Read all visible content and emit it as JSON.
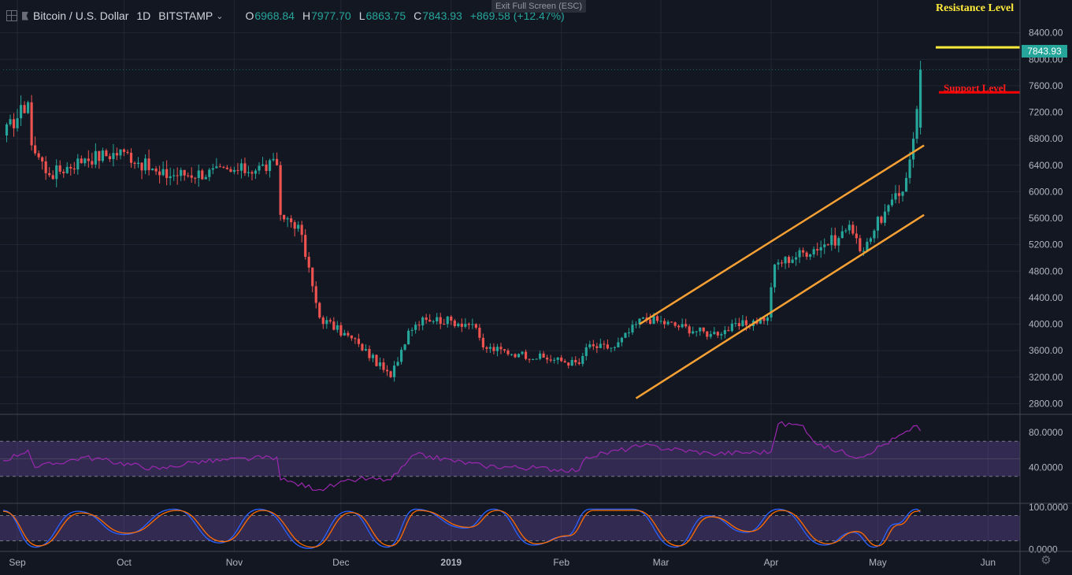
{
  "header": {
    "symbol": "Bitcoin / U.S. Dollar",
    "interval": "1D",
    "exchange": "BITSTAMP",
    "chevron": "⌄",
    "open_label": "O",
    "open": "6968.84",
    "high_label": "H",
    "high": "7977.70",
    "low_label": "L",
    "low": "6863.75",
    "close_label": "C",
    "close": "7843.93",
    "change": "+869.58 (+12.47%)"
  },
  "exit_fullscreen": "Exit Full Screen (ESC)",
  "annotations": {
    "resistance": "Resistance Level",
    "support": "Support Level"
  },
  "last_price": "7843.93",
  "colors": {
    "background": "#131722",
    "up": "#26a69a",
    "down": "#ef5350",
    "channel": "#f7a033",
    "resistance": "#ffeb3b",
    "support": "#ff0000",
    "rsi": "#9c27b0",
    "stoch_k": "#2962ff",
    "stoch_d": "#ff6d00"
  },
  "chart_data": [
    {
      "type": "candlestick",
      "title": "",
      "x_ticks": [
        "Sep",
        "Oct",
        "Nov",
        "Dec",
        "2019",
        "Feb",
        "Mar",
        "Apr",
        "May",
        "Jun"
      ],
      "y_ticks": [
        "8400.00",
        "8000.00",
        "7600.00",
        "7200.00",
        "6800.00",
        "6400.00",
        "6000.00",
        "5600.00",
        "5200.00",
        "4800.00",
        "4400.00",
        "4000.00",
        "3600.00",
        "3200.00",
        "2800.00"
      ],
      "ylim": [
        2650,
        8800
      ],
      "close_path": [
        [
          "2018-08-28",
          6850
        ],
        [
          "2018-09-04",
          7350
        ],
        [
          "2018-09-05",
          6700
        ],
        [
          "2018-09-10",
          6250
        ],
        [
          "2018-09-20",
          6500
        ],
        [
          "2018-10-01",
          6600
        ],
        [
          "2018-10-11",
          6250
        ],
        [
          "2018-10-31",
          6300
        ],
        [
          "2018-11-13",
          6400
        ],
        [
          "2018-11-14",
          5650
        ],
        [
          "2018-11-19",
          5500
        ],
        [
          "2018-11-25",
          4100
        ],
        [
          "2018-12-06",
          3700
        ],
        [
          "2018-12-15",
          3200
        ],
        [
          "2018-12-20",
          3900
        ],
        [
          "2018-12-24",
          4100
        ],
        [
          "2019-01-07",
          4000
        ],
        [
          "2019-01-10",
          3650
        ],
        [
          "2019-01-20",
          3550
        ],
        [
          "2019-02-06",
          3400
        ],
        [
          "2019-02-08",
          3650
        ],
        [
          "2019-02-16",
          3650
        ],
        [
          "2019-02-24",
          4100
        ],
        [
          "2019-03-15",
          3850
        ],
        [
          "2019-03-31",
          4100
        ],
        [
          "2019-04-02",
          4900
        ],
        [
          "2019-04-20",
          5300
        ],
        [
          "2019-04-23",
          5500
        ],
        [
          "2019-04-26",
          5100
        ],
        [
          "2019-05-03",
          5700
        ],
        [
          "2019-05-08",
          6000
        ],
        [
          "2019-05-11",
          6800
        ],
        [
          "2019-05-12",
          7250
        ],
        [
          "2019-05-13",
          7843.93
        ]
      ],
      "channel_upper": [
        [
          "2019-02-23",
          4000
        ],
        [
          "2019-05-14",
          6700
        ]
      ],
      "channel_lower": [
        [
          "2019-02-22",
          2880
        ],
        [
          "2019-05-14",
          5650
        ]
      ],
      "resistance_level": 8180,
      "support_level": 7500
    },
    {
      "type": "line",
      "title": "",
      "y_ticks": [
        "80.0000",
        "40.0000"
      ],
      "ylim": [
        0,
        100
      ],
      "band": [
        30,
        70
      ],
      "series": [
        {
          "points": [
            [
              "2018-08-28",
              48
            ],
            [
              "2018-09-04",
              60
            ],
            [
              "2018-09-06",
              40
            ],
            [
              "2018-09-20",
              52
            ],
            [
              "2018-10-11",
              38
            ],
            [
              "2018-10-20",
              46
            ],
            [
              "2018-11-13",
              52
            ],
            [
              "2018-11-14",
              26
            ],
            [
              "2018-11-25",
              15
            ],
            [
              "2018-12-06",
              27
            ],
            [
              "2018-12-15",
              26
            ],
            [
              "2018-12-22",
              55
            ],
            [
              "2019-01-10",
              42
            ],
            [
              "2019-02-06",
              37
            ],
            [
              "2019-02-08",
              52
            ],
            [
              "2019-02-24",
              65
            ],
            [
              "2019-03-15",
              56
            ],
            [
              "2019-04-01",
              58
            ],
            [
              "2019-04-03",
              90
            ],
            [
              "2019-04-10",
              88
            ],
            [
              "2019-04-14",
              66
            ],
            [
              "2019-04-26",
              52
            ],
            [
              "2019-05-10",
              82
            ],
            [
              "2019-05-12",
              88
            ],
            [
              "2019-05-13",
              82
            ]
          ]
        }
      ]
    },
    {
      "type": "line",
      "title": "",
      "y_ticks": [
        "100.0000",
        "0.0000"
      ],
      "ylim": [
        -5,
        107
      ],
      "band": [
        20,
        80
      ],
      "series": [
        {
          "points": [
            [
              "2018-08-28",
              92
            ],
            [
              "2018-09-06",
              5
            ],
            [
              "2018-09-18",
              90
            ],
            [
              "2018-10-01",
              35
            ],
            [
              "2018-10-15",
              95
            ],
            [
              "2018-10-28",
              15
            ],
            [
              "2018-11-08",
              95
            ],
            [
              "2018-11-22",
              2
            ],
            [
              "2018-12-03",
              90
            ],
            [
              "2018-12-14",
              5
            ],
            [
              "2018-12-22",
              95
            ],
            [
              "2019-01-05",
              50
            ],
            [
              "2019-01-13",
              95
            ],
            [
              "2019-01-24",
              10
            ],
            [
              "2019-02-02",
              30
            ],
            [
              "2019-02-09",
              95
            ],
            [
              "2019-02-21",
              95
            ],
            [
              "2019-03-05",
              5
            ],
            [
              "2019-03-14",
              80
            ],
            [
              "2019-03-25",
              40
            ],
            [
              "2019-04-03",
              95
            ],
            [
              "2019-04-16",
              10
            ],
            [
              "2019-04-24",
              40
            ],
            [
              "2019-04-30",
              5
            ],
            [
              "2019-05-06",
              60
            ],
            [
              "2019-05-12",
              95
            ],
            [
              "2019-05-13",
              88
            ]
          ]
        },
        {
          "points": [
            [
              "2018-08-28",
              90
            ],
            [
              "2018-09-07",
              8
            ],
            [
              "2018-09-19",
              86
            ],
            [
              "2018-10-02",
              38
            ],
            [
              "2018-10-16",
              92
            ],
            [
              "2018-10-29",
              18
            ],
            [
              "2018-11-09",
              92
            ],
            [
              "2018-11-23",
              5
            ],
            [
              "2018-12-04",
              87
            ],
            [
              "2018-12-15",
              8
            ],
            [
              "2018-12-23",
              92
            ],
            [
              "2019-01-06",
              52
            ],
            [
              "2019-01-14",
              92
            ],
            [
              "2019-01-25",
              13
            ],
            [
              "2019-02-03",
              32
            ],
            [
              "2019-02-10",
              92
            ],
            [
              "2019-02-22",
              92
            ],
            [
              "2019-03-06",
              8
            ],
            [
              "2019-03-15",
              77
            ],
            [
              "2019-03-26",
              42
            ],
            [
              "2019-04-04",
              92
            ],
            [
              "2019-04-17",
              13
            ],
            [
              "2019-04-25",
              42
            ],
            [
              "2019-05-01",
              8
            ],
            [
              "2019-05-07",
              58
            ],
            [
              "2019-05-12",
              90
            ],
            [
              "2019-05-13",
              92
            ]
          ]
        }
      ]
    }
  ]
}
